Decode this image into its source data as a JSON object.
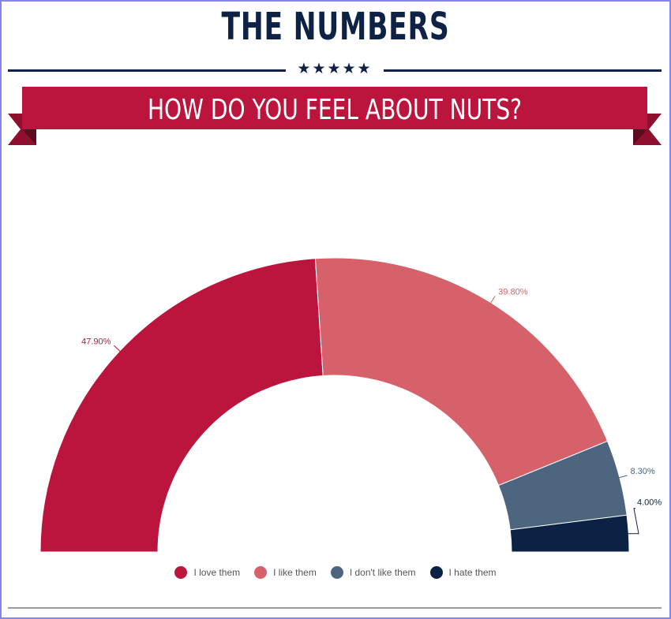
{
  "header": {
    "title": "THE NUMBERS",
    "stars": "★★★★★",
    "subtitle": "HOW DO YOU FEEL ABOUT NUTS?"
  },
  "colors": {
    "navy": "#0d2244",
    "ribbon": "#bb143d",
    "ribbon_fold": "#8f0f2e"
  },
  "chart_data": {
    "type": "pie",
    "variant": "half-donut",
    "title": "",
    "series": [
      {
        "name": "I love them",
        "value": 47.9,
        "label": "47.90%",
        "color": "#bb143d"
      },
      {
        "name": "I like them",
        "value": 39.8,
        "label": "39.80%",
        "color": "#d6616b"
      },
      {
        "name": "I don't like them",
        "value": 8.3,
        "label": "8.30%",
        "color": "#4e6580"
      },
      {
        "name": "I hate them",
        "value": 4.0,
        "label": "4.00%",
        "color": "#0c2245"
      }
    ],
    "legend_position": "bottom"
  }
}
